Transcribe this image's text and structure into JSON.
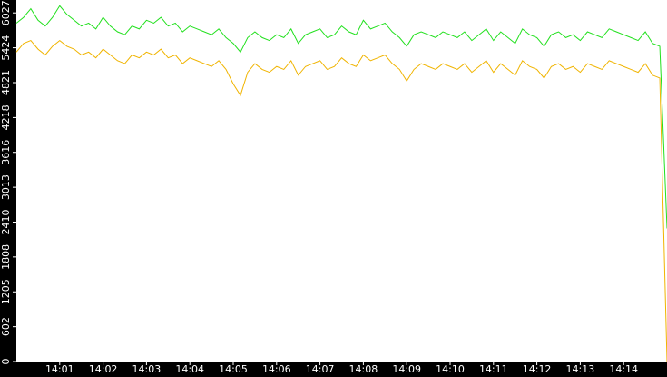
{
  "chart_data": {
    "type": "line",
    "categories": [
      null,
      null,
      null,
      null,
      null,
      null,
      "14:01",
      null,
      null,
      null,
      null,
      null,
      "14:02",
      null,
      null,
      null,
      null,
      null,
      "14:03",
      null,
      null,
      null,
      null,
      null,
      "14:04",
      null,
      null,
      null,
      null,
      null,
      "14:05",
      null,
      null,
      null,
      null,
      null,
      "14:06",
      null,
      null,
      null,
      null,
      null,
      "14:07",
      null,
      null,
      null,
      null,
      null,
      "14:08",
      null,
      null,
      null,
      null,
      null,
      "14:09",
      null,
      null,
      null,
      null,
      null,
      "14:10",
      null,
      null,
      null,
      null,
      null,
      "14:11",
      null,
      null,
      null,
      null,
      null,
      "14:12",
      null,
      null,
      null,
      null,
      null,
      "14:13",
      null,
      null,
      null,
      null,
      null,
      "14:14",
      null,
      null,
      null,
      null,
      null,
      null
    ],
    "series": [
      {
        "color": "#22e01e",
        "values": [
          5850,
          5950,
          6100,
          5900,
          5800,
          5950,
          6150,
          6000,
          5900,
          5800,
          5850,
          5750,
          5950,
          5800,
          5700,
          5650,
          5800,
          5750,
          5900,
          5850,
          5950,
          5800,
          5850,
          5700,
          5800,
          5750,
          5700,
          5650,
          5750,
          5600,
          5500,
          5350,
          5600,
          5700,
          5600,
          5550,
          5650,
          5600,
          5750,
          5500,
          5650,
          5700,
          5750,
          5600,
          5650,
          5800,
          5700,
          5650,
          5900,
          5750,
          5800,
          5850,
          5700,
          5600,
          5450,
          5650,
          5700,
          5650,
          5600,
          5700,
          5650,
          5600,
          5700,
          5550,
          5650,
          5750,
          5550,
          5700,
          5600,
          5500,
          5750,
          5650,
          5600,
          5450,
          5650,
          5700,
          5600,
          5650,
          5550,
          5700,
          5650,
          5600,
          5750,
          5700,
          5650,
          5600,
          5550,
          5700,
          5500,
          5450,
          2300
        ]
      },
      {
        "color": "#f0b400",
        "values": [
          5350,
          5500,
          5550,
          5400,
          5300,
          5450,
          5550,
          5450,
          5400,
          5300,
          5350,
          5250,
          5400,
          5300,
          5200,
          5150,
          5300,
          5250,
          5350,
          5300,
          5400,
          5250,
          5300,
          5150,
          5250,
          5200,
          5150,
          5100,
          5200,
          5050,
          4800,
          4600,
          5000,
          5150,
          5050,
          5000,
          5100,
          5050,
          5200,
          4950,
          5100,
          5150,
          5200,
          5050,
          5100,
          5250,
          5150,
          5100,
          5300,
          5200,
          5250,
          5300,
          5150,
          5050,
          4850,
          5050,
          5150,
          5100,
          5050,
          5150,
          5100,
          5050,
          5150,
          5000,
          5100,
          5200,
          5000,
          5150,
          5050,
          4950,
          5200,
          5100,
          5050,
          4900,
          5100,
          5150,
          5050,
          5100,
          5000,
          5150,
          5100,
          5050,
          5200,
          5150,
          5100,
          5050,
          5000,
          5150,
          4950,
          4900,
          0
        ]
      }
    ],
    "ylim": [
      0,
      6250
    ],
    "yticks": [
      0,
      602,
      1205,
      1808,
      2410,
      3013,
      3616,
      4218,
      4821,
      5424,
      6027
    ]
  }
}
